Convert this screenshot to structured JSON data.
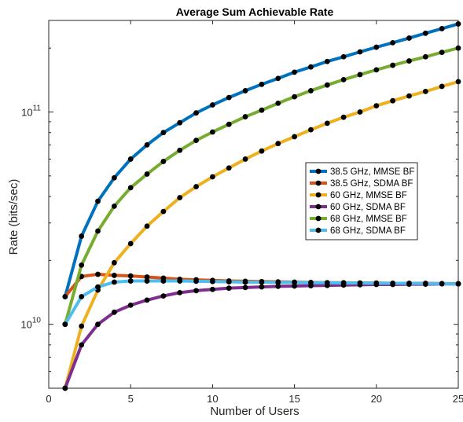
{
  "chart_data": {
    "type": "line",
    "title": "Average Sum Achievable Rate",
    "xlabel": "Number of Users",
    "ylabel": "Rate (bits/sec)",
    "xlim": [
      0,
      25
    ],
    "ylim": [
      5000000000.0,
      270000000000.0
    ],
    "yscale": "log",
    "xticks": [
      0,
      5,
      10,
      15,
      20,
      25
    ],
    "xtick_labels": [
      "0",
      "5",
      "10",
      "15",
      "20",
      "25"
    ],
    "yticks": [
      10000000000.0,
      100000000000.0
    ],
    "ytick_labels": [
      {
        "base": "10",
        "exp": "10"
      },
      {
        "base": "10",
        "exp": "11"
      }
    ],
    "grid": false,
    "legend_position": "center-right",
    "x": [
      1,
      2,
      3,
      4,
      5,
      6,
      7,
      8,
      9,
      10,
      11,
      12,
      13,
      14,
      15,
      16,
      17,
      18,
      19,
      20,
      21,
      22,
      23,
      24,
      25
    ],
    "series": [
      {
        "name": "38.5 GHz, MMSE BF",
        "color": "#0072BD",
        "values": [
          13500000000.0,
          26000000000.0,
          38000000000.0,
          49000000000.0,
          60000000000.0,
          70000000000.0,
          80000000000.0,
          89000000000.0,
          99000000000.0,
          108000000000.0,
          117000000000.0,
          126000000000.0,
          135000000000.0,
          144000000000.0,
          154000000000.0,
          163000000000.0,
          173000000000.0,
          182000000000.0,
          192000000000.0,
          202000000000.0,
          212000000000.0,
          223000000000.0,
          235000000000.0,
          247000000000.0,
          260000000000.0
        ]
      },
      {
        "name": "38.5 GHz, SDMA BF",
        "color": "#D95319",
        "values": [
          13500000000.0,
          16800000000.0,
          17200000000.0,
          17000000000.0,
          16900000000.0,
          16700000000.0,
          16500000000.0,
          16300000000.0,
          16200000000.0,
          16100000000.0,
          16000000000.0,
          15950000000.0,
          15900000000.0,
          15850000000.0,
          15800000000.0,
          15750000000.0,
          15700000000.0,
          15700000000.0,
          15650000000.0,
          15650000000.0,
          15600000000.0,
          15600000000.0,
          15600000000.0,
          15550000000.0,
          15550000000.0
        ]
      },
      {
        "name": "60 GHz, MMSE BF",
        "color": "#EDB120",
        "values": [
          5000000000.0,
          9800000000.0,
          14500000000.0,
          19500000000.0,
          24000000000.0,
          29000000000.0,
          34000000000.0,
          39500000000.0,
          44500000000.0,
          49500000000.0,
          54500000000.0,
          60000000000.0,
          65500000000.0,
          71000000000.0,
          76500000000.0,
          82500000000.0,
          88500000000.0,
          94500000000.0,
          100000000000.0,
          107000000000.0,
          113000000000.0,
          119000000000.0,
          125000000000.0,
          132000000000.0,
          139000000000.0
        ]
      },
      {
        "name": "60 GHz, SDMA BF",
        "color": "#7E2F8E",
        "values": [
          5000000000.0,
          8000000000.0,
          10000000000.0,
          11400000000.0,
          12300000000.0,
          13000000000.0,
          13600000000.0,
          14100000000.0,
          14400000000.0,
          14600000000.0,
          14800000000.0,
          14900000000.0,
          15000000000.0,
          15100000000.0,
          15150000000.0,
          15200000000.0,
          15250000000.0,
          15300000000.0,
          15350000000.0,
          15400000000.0,
          15400000000.0,
          15450000000.0,
          15450000000.0,
          15500000000.0,
          15500000000.0
        ]
      },
      {
        "name": "68 GHz, MMSE BF",
        "color": "#77AC30",
        "values": [
          10000000000.0,
          19000000000.0,
          27500000000.0,
          36000000000.0,
          44000000000.0,
          51000000000.0,
          58500000000.0,
          66000000000.0,
          73500000000.0,
          80500000000.0,
          87500000000.0,
          95000000000.0,
          102000000000.0,
          110000000000.0,
          118000000000.0,
          126000000000.0,
          134000000000.0,
          142000000000.0,
          150000000000.0,
          158000000000.0,
          166000000000.0,
          174000000000.0,
          182000000000.0,
          191000000000.0,
          200000000000.0
        ]
      },
      {
        "name": "68 GHz, SDMA BF",
        "color": "#4DBEEE",
        "values": [
          10000000000.0,
          13500000000.0,
          15000000000.0,
          15800000000.0,
          16000000000.0,
          16000000000.0,
          16000000000.0,
          16000000000.0,
          15950000000.0,
          15900000000.0,
          15850000000.0,
          15800000000.0,
          15800000000.0,
          15750000000.0,
          15750000000.0,
          15700000000.0,
          15700000000.0,
          15650000000.0,
          15650000000.0,
          15600000000.0,
          15600000000.0,
          15600000000.0,
          15550000000.0,
          15550000000.0,
          15500000000.0
        ]
      }
    ]
  }
}
